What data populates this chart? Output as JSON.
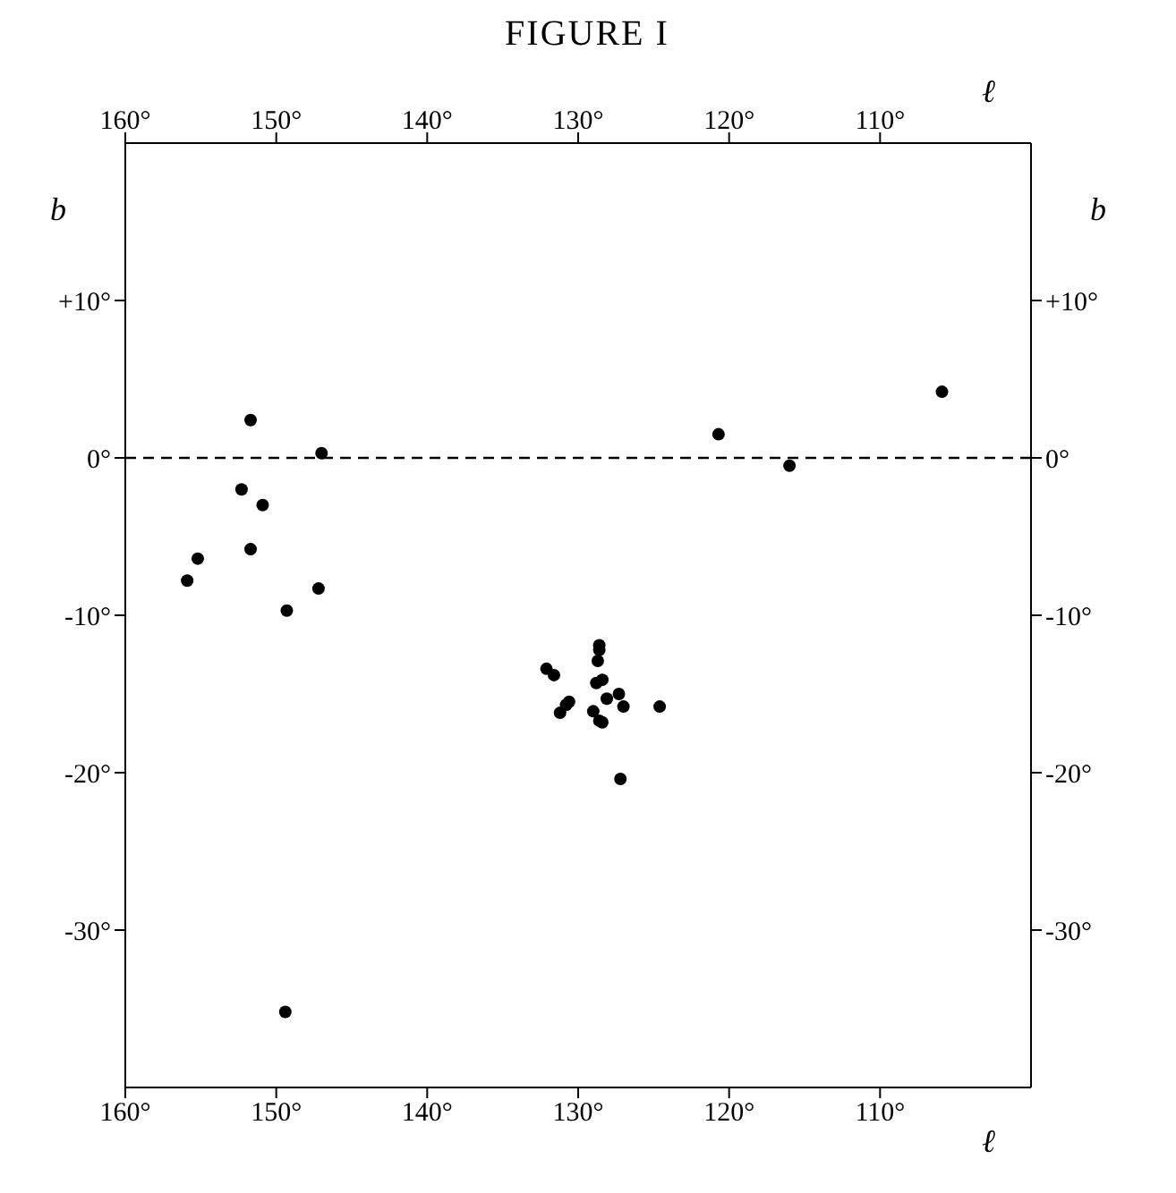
{
  "chart_data": {
    "type": "scatter",
    "title": "FIGURE I",
    "xlabel": "ℓ",
    "x2label": "ℓ",
    "ylabel": "b",
    "y2label": "b",
    "x": [
      151.7,
      147.0,
      152.3,
      150.9,
      151.7,
      155.2,
      155.9,
      147.2,
      149.3,
      149.4,
      128.6,
      128.6,
      128.7,
      132.1,
      131.6,
      128.8,
      128.4,
      128.1,
      127.3,
      127.0,
      130.6,
      130.8,
      131.2,
      129.0,
      128.6,
      128.4,
      124.6,
      127.2,
      120.7,
      116.0,
      105.9
    ],
    "series": [
      {
        "color": "#000000",
        "values": [
          2.4,
          0.3,
          -2.0,
          -3.0,
          -5.8,
          -6.4,
          -7.8,
          -8.3,
          -9.7,
          -35.2,
          -11.9,
          -12.2,
          -12.9,
          -13.4,
          -13.8,
          -14.3,
          -14.1,
          -15.3,
          -15.0,
          -15.8,
          -15.5,
          -15.7,
          -16.2,
          -16.1,
          -16.7,
          -16.8,
          -15.8,
          -20.4,
          1.5,
          -0.5,
          4.2
        ]
      }
    ],
    "xlim": [
      160,
      100
    ],
    "xticks": [
      {
        "value": 160,
        "label": "160°"
      },
      {
        "value": 150,
        "label": "150°"
      },
      {
        "value": 140,
        "label": "140°"
      },
      {
        "value": 130,
        "label": "130°"
      },
      {
        "value": 120,
        "label": "120°"
      },
      {
        "value": 110,
        "label": "110°"
      }
    ],
    "x2lim": [
      160,
      100
    ],
    "x2ticks": [
      {
        "value": 160,
        "label": "160°"
      },
      {
        "value": 150,
        "label": "150°"
      },
      {
        "value": 140,
        "label": "140°"
      },
      {
        "value": 130,
        "label": "130°"
      },
      {
        "value": 120,
        "label": "120°"
      },
      {
        "value": 110,
        "label": "110°"
      }
    ],
    "ylim": [
      -40,
      20
    ],
    "yticks": [
      {
        "value": 10,
        "label": "+10°"
      },
      {
        "value": 0,
        "label": "0°"
      },
      {
        "value": -10,
        "label": "-10°"
      },
      {
        "value": -20,
        "label": "-20°"
      },
      {
        "value": -30,
        "label": "-30°"
      }
    ],
    "y2lim": [
      -40,
      20
    ],
    "y2ticks": [
      {
        "value": 10,
        "label": "+10°"
      },
      {
        "value": 0,
        "label": "0°"
      },
      {
        "value": -10,
        "label": "-10°"
      },
      {
        "value": -20,
        "label": "-20°"
      },
      {
        "value": -30,
        "label": "-30°"
      }
    ],
    "ref_lines": [
      {
        "axis": "y",
        "value": 0,
        "label": null,
        "line_style": "dashed",
        "color": "#000000"
      }
    ],
    "marker": "circle",
    "grid": false,
    "legend": false
  }
}
